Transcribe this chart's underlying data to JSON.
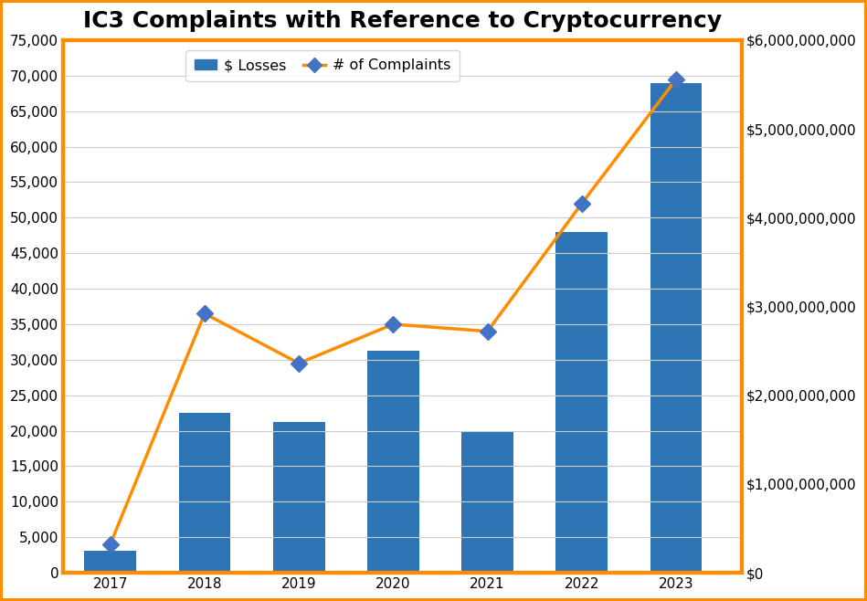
{
  "title": "IC3 Complaints with Reference to Cryptocurrency",
  "years": [
    2017,
    2018,
    2019,
    2020,
    2021,
    2022,
    2023
  ],
  "complaints": [
    4000,
    36500,
    29500,
    35000,
    34000,
    52000,
    69500
  ],
  "bar_losses_dollars": [
    250000000,
    1800000000,
    1700000000,
    2500000000,
    1600000000,
    3840000000,
    5520000000
  ],
  "bar_color": "#2E75B6",
  "line_color": "#FF8C00",
  "marker_color": "#4472C4",
  "background_color": "#FFFFFF",
  "border_color": "#FF8C00",
  "left_ylim": [
    0,
    75000
  ],
  "left_yticks": [
    0,
    5000,
    10000,
    15000,
    20000,
    25000,
    30000,
    35000,
    40000,
    45000,
    50000,
    55000,
    60000,
    65000,
    70000,
    75000
  ],
  "right_ylim": [
    0,
    6000000000
  ],
  "right_yticks": [
    0,
    1000000000,
    2000000000,
    3000000000,
    4000000000,
    5000000000,
    6000000000
  ],
  "title_fontsize": 18,
  "tick_fontsize": 11,
  "legend_fontsize": 11.5,
  "bar_width": 0.55,
  "xlim": [
    2016.5,
    2023.7
  ]
}
